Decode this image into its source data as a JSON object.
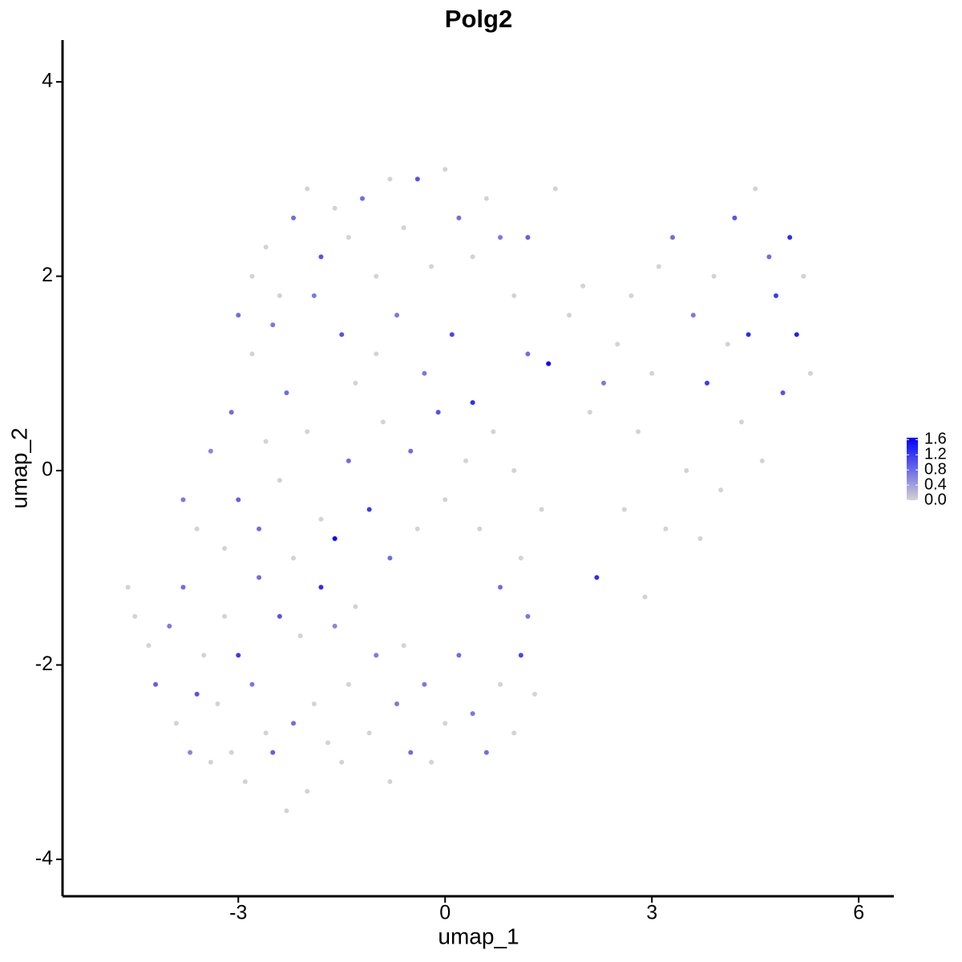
{
  "chart_data": {
    "type": "scatter",
    "title": "Polg2",
    "x_label": "umap_1",
    "y_label": "umap_2",
    "xlim": [
      -5.55,
      6.51
    ],
    "ylim": [
      -4.38,
      4.43
    ],
    "xticks": [
      -3,
      0,
      3,
      6
    ],
    "yticks": [
      -4,
      -2,
      0,
      2,
      4
    ],
    "clim": [
      0,
      1.65
    ],
    "cticks": [
      {
        "value": 0,
        "label": "0.0"
      },
      {
        "value": 0.4,
        "label": "0.4"
      },
      {
        "value": 0.8,
        "label": "0.8"
      },
      {
        "value": 1.2,
        "label": "1.2"
      },
      {
        "value": 1.6,
        "label": "1.6"
      }
    ],
    "low_color": "#d3d3d3",
    "high_color": "#0000ff",
    "x": [
      -4.6,
      -4.5,
      -4.3,
      -4.2,
      -4.0,
      -3.9,
      -3.8,
      -3.7,
      -3.6,
      -3.5,
      -3.4,
      -3.3,
      -3.2,
      -3.1,
      -3.0,
      -2.9,
      -2.8,
      -2.7,
      -2.6,
      -2.5,
      -2.4,
      -2.3,
      -2.2,
      -2.1,
      -2.0,
      -1.9,
      -1.8,
      -1.7,
      -1.6,
      -1.5,
      -1.4,
      -1.3,
      -1.1,
      -1.0,
      -0.8,
      -0.7,
      -0.6,
      -0.5,
      -0.3,
      -0.2,
      0.0,
      0.2,
      0.4,
      0.6,
      0.8,
      1.0,
      1.1,
      1.3,
      -3.8,
      -3.6,
      -3.4,
      -3.2,
      -3.1,
      -3.0,
      -2.8,
      -2.7,
      -2.6,
      -2.5,
      -2.4,
      -2.3,
      -2.2,
      -2.0,
      -1.9,
      -1.8,
      -1.6,
      -1.5,
      -1.4,
      -1.3,
      -1.1,
      -1.0,
      -0.9,
      -0.8,
      -0.7,
      -0.5,
      -0.4,
      -0.3,
      -0.1,
      0.0,
      0.1,
      0.3,
      0.4,
      0.5,
      0.7,
      0.8,
      1.0,
      1.1,
      1.2,
      1.4,
      -3.0,
      -2.8,
      -2.6,
      -2.4,
      -2.2,
      -2.0,
      -1.8,
      -1.6,
      -1.4,
      -1.2,
      -1.0,
      -0.8,
      -0.6,
      -0.4,
      -0.2,
      0.0,
      0.2,
      0.4,
      0.6,
      0.8,
      1.0,
      1.2,
      1.2,
      1.5,
      1.6,
      1.8,
      2.0,
      2.1,
      2.2,
      2.3,
      2.5,
      2.6,
      2.7,
      2.8,
      2.9,
      3.0,
      3.1,
      3.2,
      3.3,
      3.5,
      3.6,
      3.7,
      3.8,
      3.9,
      4.0,
      4.1,
      4.2,
      4.3,
      4.4,
      4.5,
      4.6,
      4.7,
      4.8,
      4.9,
      5.0,
      5.1,
      5.2,
      5.3
    ],
    "y": [
      -1.2,
      -1.5,
      -1.8,
      -2.2,
      -1.6,
      -2.6,
      -1.2,
      -2.9,
      -2.3,
      -1.9,
      -3.0,
      -2.4,
      -1.5,
      -2.9,
      -1.9,
      -3.2,
      -2.2,
      -1.1,
      -2.7,
      -2.9,
      -1.5,
      -3.5,
      -2.6,
      -1.7,
      -3.3,
      -2.4,
      -1.2,
      -2.8,
      -1.6,
      -3.0,
      -2.2,
      -1.4,
      -2.7,
      -1.9,
      -3.2,
      -2.4,
      -1.8,
      -2.9,
      -2.2,
      -3.0,
      -2.6,
      -1.9,
      -2.5,
      -2.9,
      -2.2,
      -2.7,
      -1.9,
      -2.3,
      -0.3,
      -0.6,
      0.2,
      -0.8,
      0.6,
      -0.3,
      1.2,
      -0.6,
      0.3,
      1.5,
      -0.1,
      0.8,
      -0.9,
      0.4,
      1.8,
      -0.5,
      -0.7,
      1.4,
      0.1,
      0.9,
      -0.4,
      1.2,
      0.5,
      -0.9,
      1.6,
      0.2,
      -0.6,
      1.0,
      0.6,
      -0.3,
      1.4,
      0.1,
      0.7,
      -0.6,
      0.4,
      -1.2,
      0.0,
      -0.9,
      -1.5,
      -0.4,
      1.6,
      2.0,
      2.3,
      1.8,
      2.6,
      2.9,
      2.2,
      2.7,
      2.4,
      2.8,
      2.0,
      3.0,
      2.5,
      3.0,
      2.1,
      3.1,
      2.6,
      2.2,
      2.8,
      2.4,
      1.8,
      2.4,
      1.2,
      1.1,
      2.9,
      1.6,
      1.9,
      0.6,
      -1.1,
      0.9,
      1.3,
      -0.4,
      1.8,
      0.4,
      -1.3,
      1.0,
      2.1,
      -0.6,
      2.4,
      0.0,
      1.6,
      -0.7,
      0.9,
      2.0,
      -0.2,
      1.3,
      2.6,
      0.5,
      1.4,
      2.9,
      0.1,
      2.2,
      1.8,
      0.8,
      2.4,
      1.4,
      2.0,
      1.0
    ],
    "values": [
      0,
      0,
      0,
      0.9,
      0.7,
      0,
      0.8,
      0.6,
      1.0,
      0,
      0,
      0,
      0,
      0,
      1.2,
      0,
      0.7,
      0.8,
      0,
      0.9,
      1.0,
      0,
      0.8,
      0,
      0,
      0,
      1.3,
      0,
      0.6,
      0,
      0,
      0,
      0,
      0.7,
      0,
      0.7,
      0,
      0.8,
      0.7,
      0,
      0,
      0.8,
      0.7,
      0.8,
      0,
      0,
      1.1,
      0,
      0.7,
      0,
      0.6,
      0,
      0.8,
      0.9,
      0,
      0.8,
      0,
      0.7,
      0,
      0.8,
      0,
      0,
      0.7,
      0,
      1.6,
      1.0,
      0.8,
      0,
      1.2,
      0,
      0,
      0.8,
      0.7,
      0.8,
      0,
      0.7,
      1.0,
      0,
      1.1,
      0,
      1.3,
      0,
      0,
      0.8,
      0,
      0,
      0.7,
      0,
      0.8,
      0,
      0,
      0,
      0.8,
      0,
      1.0,
      0,
      0,
      0.8,
      0,
      0,
      0,
      1.0,
      0,
      0,
      0.8,
      0,
      0,
      0.7,
      0,
      0.9,
      0.8,
      1.6,
      0,
      0,
      0,
      0,
      1.3,
      0.7,
      0,
      0,
      0,
      0,
      0,
      0,
      0,
      0,
      0.8,
      0,
      0.7,
      0,
      1.2,
      0,
      0,
      0,
      1.0,
      0,
      1.3,
      0,
      0,
      0.8,
      1.2,
      1.0,
      1.3,
      1.4,
      0,
      0
    ]
  }
}
